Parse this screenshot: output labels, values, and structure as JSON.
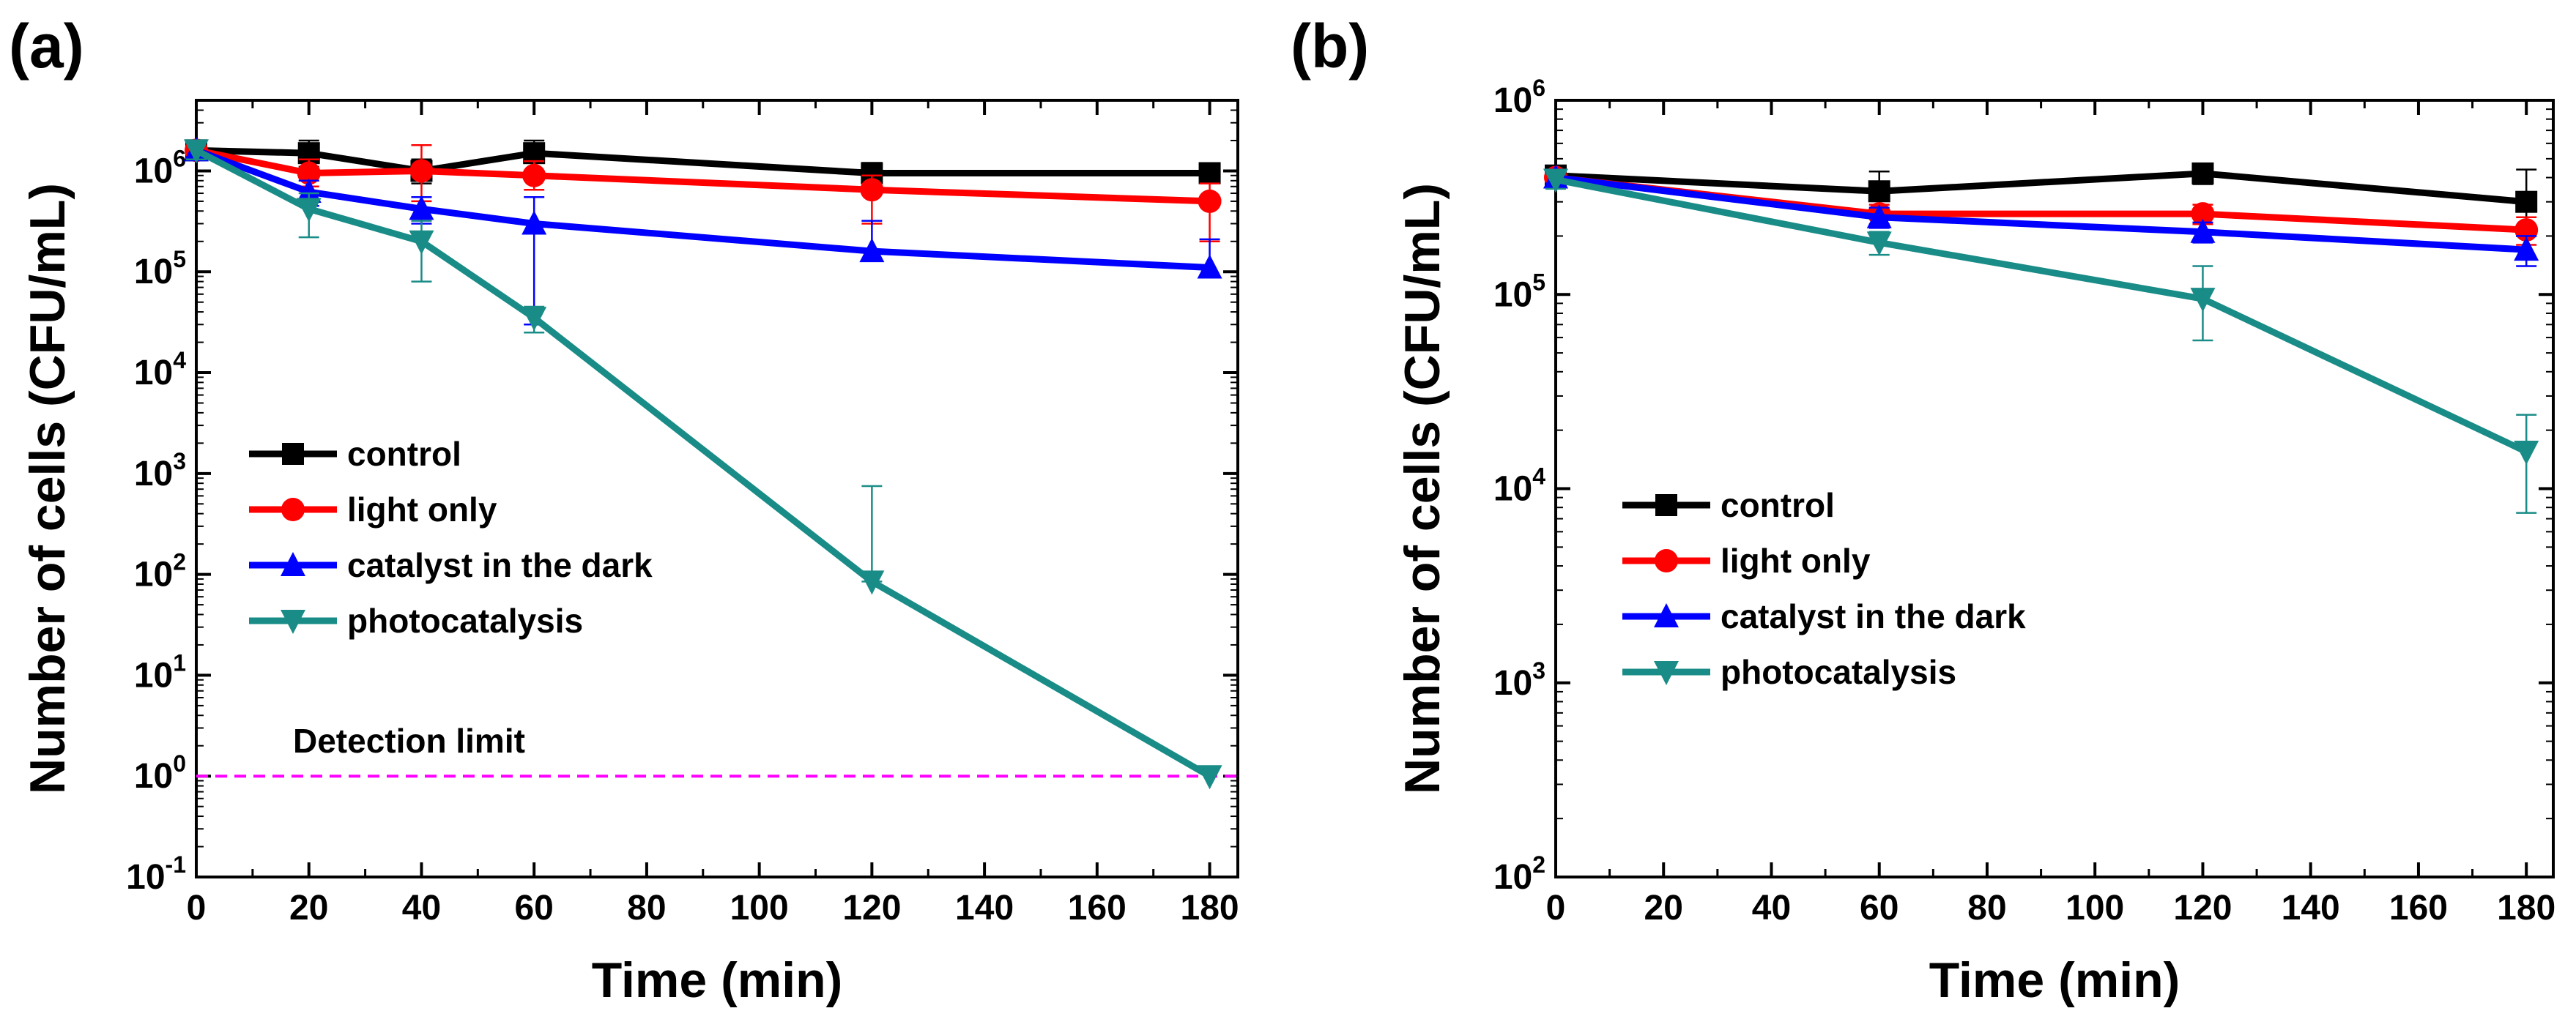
{
  "chart_data": [
    {
      "type": "line",
      "panel_label": "(a)",
      "xlabel": "Time (min)",
      "ylabel": "Number of cells (CFU/mL)",
      "yscale": "log",
      "xlim": [
        0,
        185
      ],
      "ylim_exp": [
        -1,
        6.7
      ],
      "x_ticks": [
        0,
        20,
        40,
        60,
        80,
        100,
        120,
        140,
        160,
        180
      ],
      "x_tick_labels": [
        "0",
        "20",
        "40",
        "60",
        "80",
        "100",
        "120",
        "140",
        "160",
        "180"
      ],
      "y_tick_exponents": [
        -1,
        0,
        1,
        2,
        3,
        4,
        5,
        6
      ],
      "y_tick_labels": [
        {
          "base": "10",
          "exp": "-1"
        },
        {
          "base": "10",
          "exp": "0"
        },
        {
          "base": "10",
          "exp": "1"
        },
        {
          "base": "10",
          "exp": "2"
        },
        {
          "base": "10",
          "exp": "3"
        },
        {
          "base": "10",
          "exp": "4"
        },
        {
          "base": "10",
          "exp": "5"
        },
        {
          "base": "10",
          "exp": "6"
        }
      ],
      "series": [
        {
          "name": "control",
          "color": "#000000",
          "marker": "square",
          "x": [
            0,
            20,
            40,
            60,
            120,
            180
          ],
          "y": [
            1600000,
            1500000,
            1000000,
            1500000,
            950000,
            950000
          ],
          "err": [
            [
              1300000,
              1900000
            ],
            [
              1100000,
              2000000
            ],
            [
              750000,
              1300000
            ],
            [
              1000000,
              2000000
            ],
            [
              800000,
              1200000
            ],
            [
              800000,
              1150000
            ]
          ]
        },
        {
          "name": "light only",
          "color": "#ff0000",
          "marker": "circle",
          "x": [
            0,
            20,
            40,
            60,
            120,
            180
          ],
          "y": [
            1600000,
            950000,
            1000000,
            900000,
            650000,
            500000
          ],
          "err": [
            [
              1300000,
              1900000
            ],
            [
              700000,
              1300000
            ],
            [
              500000,
              1800000
            ],
            [
              650000,
              1250000
            ],
            [
              300000,
              900000
            ],
            [
              200000,
              750000
            ]
          ]
        },
        {
          "name": "catalyst in the dark",
          "color": "#0000ff",
          "marker": "triangle-up",
          "x": [
            0,
            20,
            40,
            60,
            120,
            180
          ],
          "y": [
            1600000,
            620000,
            420000,
            300000,
            160000,
            110000
          ],
          "err": [
            [
              1300000,
              1900000
            ],
            [
              450000,
              800000
            ],
            [
              300000,
              550000
            ],
            [
              30000,
              550000
            ],
            [
              130000,
              320000
            ],
            [
              90000,
              210000
            ]
          ]
        },
        {
          "name": "photocatalysis",
          "color": "#1a8c87",
          "marker": "triangle-down",
          "x": [
            0,
            20,
            40,
            60,
            120,
            180
          ],
          "y": [
            1600000,
            420000,
            200000,
            35000,
            85,
            1
          ],
          "err": [
            [
              1300000,
              1900000
            ],
            [
              220000,
              600000
            ],
            [
              80000,
              320000
            ],
            [
              25000,
              45000
            ],
            [
              85,
              750
            ],
            [
              1,
              1
            ]
          ]
        }
      ],
      "reference_line": {
        "label": "Detection limit",
        "y": 1,
        "color": "#ff00ff",
        "style": "dashed"
      },
      "legend_position": "middle-left"
    },
    {
      "type": "line",
      "panel_label": "(b)",
      "xlabel": "Time (min)",
      "ylabel": "Number of cells (CFU/mL)",
      "yscale": "log",
      "xlim": [
        0,
        185
      ],
      "ylim_exp": [
        2,
        6
      ],
      "x_ticks": [
        0,
        20,
        40,
        60,
        80,
        100,
        120,
        140,
        160,
        180
      ],
      "x_tick_labels": [
        "0",
        "20",
        "40",
        "60",
        "80",
        "100",
        "120",
        "140",
        "160",
        "180"
      ],
      "y_tick_exponents": [
        2,
        3,
        4,
        5,
        6
      ],
      "y_tick_labels": [
        {
          "base": "10",
          "exp": "2"
        },
        {
          "base": "10",
          "exp": "3"
        },
        {
          "base": "10",
          "exp": "4"
        },
        {
          "base": "10",
          "exp": "5"
        },
        {
          "base": "10",
          "exp": "6"
        }
      ],
      "series": [
        {
          "name": "control",
          "color": "#000000",
          "marker": "square",
          "x": [
            0,
            60,
            120,
            180
          ],
          "y": [
            410000,
            340000,
            420000,
            300000
          ],
          "err": [
            [
              360000,
              460000
            ],
            [
              270000,
              430000
            ],
            [
              370000,
              470000
            ],
            [
              200000,
              440000
            ]
          ]
        },
        {
          "name": "light only",
          "color": "#ff0000",
          "marker": "circle",
          "x": [
            0,
            60,
            120,
            180
          ],
          "y": [
            400000,
            260000,
            260000,
            215000
          ],
          "err": [
            [
              360000,
              440000
            ],
            [
              230000,
              290000
            ],
            [
              230000,
              290000
            ],
            [
              180000,
              250000
            ]
          ]
        },
        {
          "name": "catalyst in the dark",
          "color": "#0000ff",
          "marker": "triangle-up",
          "x": [
            0,
            60,
            120,
            180
          ],
          "y": [
            400000,
            250000,
            210000,
            170000
          ],
          "err": [
            [
              360000,
              440000
            ],
            [
              220000,
              280000
            ],
            [
              185000,
              235000
            ],
            [
              140000,
              200000
            ]
          ]
        },
        {
          "name": "photocatalysis",
          "color": "#1a8c87",
          "marker": "triangle-down",
          "x": [
            0,
            60,
            120,
            180
          ],
          "y": [
            390000,
            185000,
            95000,
            15500
          ],
          "err": [
            [
              350000,
              430000
            ],
            [
              160000,
              210000
            ],
            [
              58000,
              140000
            ],
            [
              7500,
              24000
            ]
          ]
        }
      ],
      "legend_position": "middle-left"
    }
  ]
}
